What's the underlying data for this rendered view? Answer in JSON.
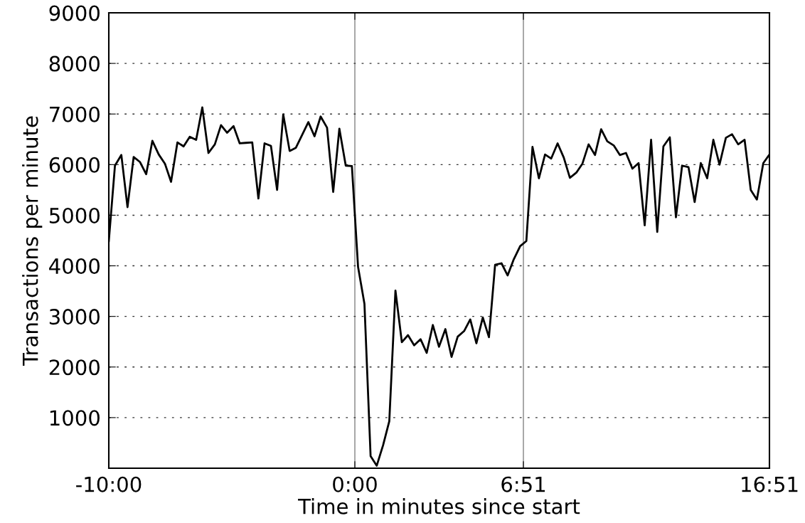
{
  "chart_data": {
    "type": "line",
    "xlabel": "Time in minutes since start",
    "ylabel": "Transactions per minute",
    "x": [
      -10,
      -9.75,
      -9.49,
      -9.24,
      -8.99,
      -8.73,
      -8.48,
      -8.23,
      -7.97,
      -7.72,
      -7.47,
      -7.21,
      -6.96,
      -6.71,
      -6.45,
      -6.2,
      -5.95,
      -5.69,
      -5.44,
      -5.19,
      -4.93,
      -4.68,
      -4.43,
      -4.17,
      -3.92,
      -3.67,
      -3.41,
      -3.16,
      -2.91,
      -2.65,
      -2.4,
      -2.15,
      -1.89,
      -1.64,
      -1.39,
      -1.13,
      -0.88,
      -0.63,
      -0.37,
      -0.12,
      0.13,
      0.39,
      0.64,
      0.89,
      1.15,
      1.4,
      1.65,
      1.91,
      2.16,
      2.41,
      2.67,
      2.92,
      3.17,
      3.42,
      3.68,
      3.93,
      4.18,
      4.44,
      4.69,
      4.94,
      5.2,
      5.45,
      5.7,
      5.96,
      6.21,
      6.46,
      6.72,
      6.97,
      7.22,
      7.48,
      7.73,
      7.98,
      8.24,
      8.49,
      8.74,
      9.0,
      9.25,
      9.5,
      9.76,
      10.01,
      10.26,
      10.52,
      10.77,
      11.02,
      11.28,
      11.53,
      11.78,
      12.04,
      12.29,
      12.54,
      12.8,
      13.05,
      13.3,
      13.56,
      13.81,
      14.06,
      14.32,
      14.57,
      14.82,
      15.08,
      15.33,
      15.58,
      15.84,
      16.09,
      16.34,
      16.6,
      16.85
    ],
    "series": [
      {
        "color": "#000000",
        "values": [
          4490,
          5980,
          6190,
          5160,
          6150,
          6050,
          5810,
          6470,
          6200,
          6020,
          5660,
          6440,
          6360,
          6550,
          6490,
          7130,
          6230,
          6400,
          6780,
          6630,
          6760,
          6420,
          6430,
          6440,
          5330,
          6420,
          6370,
          5500,
          6990,
          6270,
          6330,
          6580,
          6840,
          6560,
          6950,
          6730,
          5460,
          6710,
          5980,
          5970,
          3980,
          3250,
          240,
          50,
          460,
          930,
          3510,
          2490,
          2630,
          2430,
          2550,
          2280,
          2830,
          2400,
          2750,
          2200,
          2600,
          2710,
          2940,
          2470,
          2980,
          2590,
          4020,
          4050,
          3810,
          4130,
          4390,
          4490,
          6350,
          5730,
          6200,
          6120,
          6420,
          6140,
          5740,
          5840,
          6020,
          6400,
          6190,
          6700,
          6460,
          6380,
          6190,
          6230,
          5920,
          6030,
          4800,
          6490,
          4670,
          6360,
          6540,
          4960,
          5980,
          5950,
          5260,
          6030,
          5730,
          6490,
          6000,
          6530,
          6600,
          6400,
          6490,
          5500,
          5310,
          6030,
          6200
        ]
      }
    ],
    "xlim": [
      -10,
      16.85
    ],
    "xticks": [
      {
        "value": -10,
        "label": "-10:00"
      },
      {
        "value": 0,
        "label": "0:00"
      },
      {
        "value": 6.85,
        "label": "6:51"
      },
      {
        "value": 16.85,
        "label": "16:51"
      }
    ],
    "ylim": [
      0,
      9000
    ],
    "yticks": [
      1000,
      2000,
      3000,
      4000,
      5000,
      6000,
      7000,
      8000,
      9000
    ],
    "ref_lines": [
      {
        "axis": "x",
        "value": 0,
        "color": "#a0a0a0"
      },
      {
        "axis": "x",
        "value": 6.85,
        "color": "#a0a0a0"
      }
    ],
    "grid": "y",
    "line_style": "solid",
    "marker": "none"
  }
}
